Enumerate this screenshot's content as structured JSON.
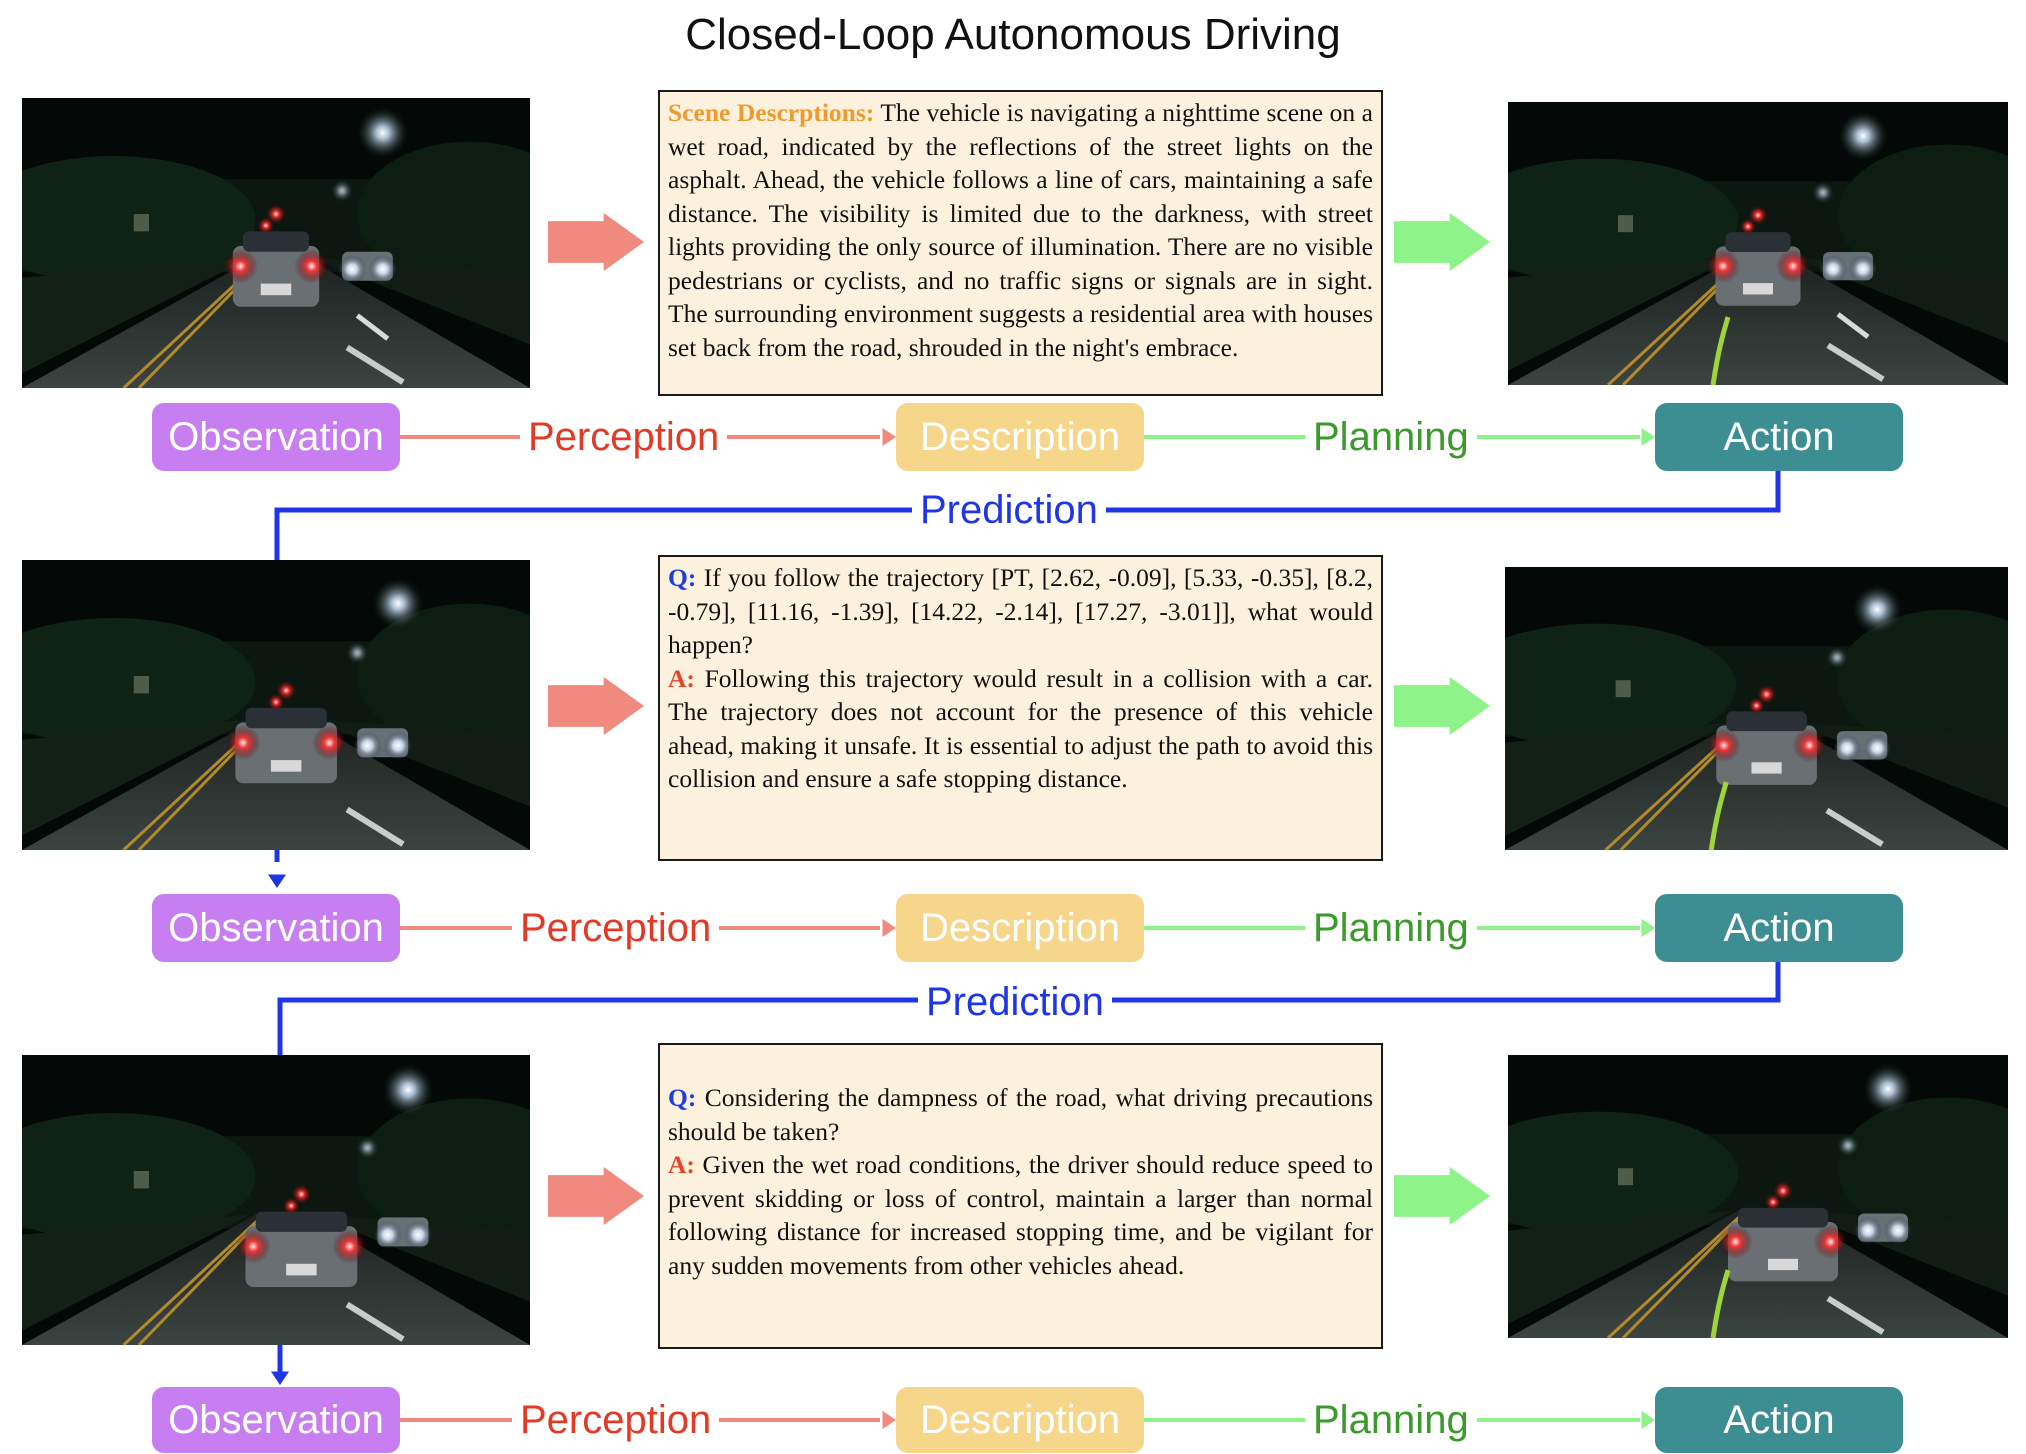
{
  "title": "Closed-Loop Autonomous Driving",
  "colors": {
    "observation": "#c77ef0",
    "description": "#f6d68a",
    "action": "#3d8e93",
    "perception": "#e23a26",
    "perception_arrow": "#f08a7e",
    "planning": "#3a9a2a",
    "planning_arrow": "#8ef48a",
    "prediction": "#1f35e6",
    "box_fill": "#fcf1dc"
  },
  "rows": [
    {
      "text": {
        "segments": [
          {
            "label": "Scene Descrptions:",
            "label_style": "scene",
            "body": " The vehicle is navigating a nighttime scene on a wet road, indicated by the reflections of the street lights on the asphalt. Ahead, the vehicle follows a line of cars, maintaining a safe distance. The visibility is limited due to the darkness, with street lights providing the only source of illumination. There are no visible pedestrians or cyclists, and no traffic signs or signals are in sight. The surrounding environment suggests a residential area with houses set back from the road, shrouded in the night's embrace."
          }
        ]
      },
      "nodes": {
        "observation": "Observation",
        "description": "Description",
        "action": "Action"
      },
      "edges": {
        "perception": "Perception",
        "planning": "Planning"
      }
    },
    {
      "text": {
        "segments": [
          {
            "label": "Q:",
            "label_style": "q",
            "body": " If you follow the trajectory [PT, [2.62, -0.09], [5.33, -0.35], [8.2, -0.79], [11.16, -1.39], [14.22, -2.14], [17.27, -3.01]], what would happen?"
          },
          {
            "label": "A:",
            "label_style": "a",
            "body": " Following this trajectory would result in a collision with a car. The trajectory does not account for the presence of this vehicle ahead, making it unsafe. It is essential to adjust the path to avoid this collision and ensure a safe stopping distance."
          }
        ]
      },
      "nodes": {
        "observation": "Observation",
        "description": "Description",
        "action": "Action"
      },
      "edges": {
        "perception": "Perception",
        "planning": "Planning"
      }
    },
    {
      "text": {
        "segments": [
          {
            "label": "Q:",
            "label_style": "q",
            "body": " Considering the dampness of the road, what driving precautions should be taken?"
          },
          {
            "label": "A:",
            "label_style": "a",
            "body": " Given the wet road conditions, the driver should reduce speed to prevent skidding or loss of control, maintain a larger than normal following distance for increased stopping time, and be vigilant for any sudden movements from other vehicles ahead."
          }
        ]
      },
      "nodes": {
        "observation": "Observation",
        "description": "Description",
        "action": "Action"
      },
      "edges": {
        "perception": "Perception",
        "planning": "Planning"
      }
    }
  ],
  "loops": [
    {
      "label": "Prediction"
    },
    {
      "label": "Prediction"
    }
  ]
}
